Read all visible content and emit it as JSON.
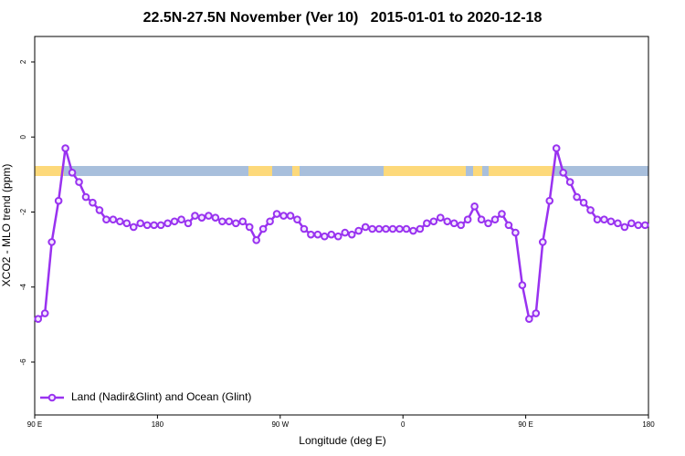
{
  "chart_data": {
    "type": "line",
    "title": "22.5N-27.5N November (Ver 10)   2015-01-01 to 2020-12-18",
    "xlabel": "Longitude (deg E)",
    "ylabel": "XCO2 - MLO trend (ppm)",
    "x": [
      92.5,
      97.5,
      102.5,
      107.5,
      112.5,
      117.5,
      122.5,
      127.5,
      132.5,
      137.5,
      142.5,
      147.5,
      152.5,
      157.5,
      162.5,
      167.5,
      172.5,
      177.5,
      182.5,
      187.5,
      192.5,
      197.5,
      202.5,
      207.5,
      212.5,
      217.5,
      222.5,
      227.5,
      232.5,
      237.5,
      242.5,
      247.5,
      252.5,
      257.5,
      262.5,
      267.5,
      272.5,
      277.5,
      282.5,
      287.5,
      292.5,
      297.5,
      302.5,
      307.5,
      312.5,
      317.5,
      322.5,
      327.5,
      332.5,
      337.5,
      342.5,
      347.5,
      352.5,
      357.5,
      362.5,
      367.5,
      372.5,
      377.5,
      382.5,
      387.5,
      392.5,
      397.5,
      402.5,
      407.5,
      412.5,
      417.5,
      422.5,
      427.5,
      432.5,
      437.5,
      442.5,
      447.5,
      452.5,
      457.5,
      462.5,
      467.5,
      472.5,
      477.5,
      482.5,
      487.5,
      492.5,
      497.5,
      502.5,
      507.5,
      512.5,
      517.5,
      522.5,
      527.5,
      532.5,
      537.5
    ],
    "series": [
      {
        "name": "Land (Nadir&Glint) and Ocean (Glint)",
        "color": "#9932f0",
        "values": [
          -4.85,
          -4.7,
          -2.8,
          -1.7,
          -0.3,
          -0.95,
          -1.2,
          -1.6,
          -1.75,
          -1.95,
          -2.2,
          -2.2,
          -2.25,
          -2.3,
          -2.4,
          -2.3,
          -2.35,
          -2.35,
          -2.35,
          -2.3,
          -2.25,
          -2.2,
          -2.3,
          -2.1,
          -2.15,
          -2.1,
          -2.15,
          -2.25,
          -2.25,
          -2.3,
          -2.25,
          -2.4,
          -2.75,
          -2.45,
          -2.25,
          -2.05,
          -2.1,
          -2.1,
          -2.2,
          -2.45,
          -2.6,
          -2.6,
          -2.65,
          -2.6,
          -2.65,
          -2.55,
          -2.6,
          -2.5,
          -2.4,
          -2.45,
          -2.45,
          -2.45,
          -2.45,
          -2.45,
          -2.45,
          -2.5,
          -2.45,
          -2.3,
          -2.25,
          -2.15,
          -2.25,
          -2.3,
          -2.35,
          -2.2,
          -1.85,
          -2.2,
          -2.3,
          -2.2,
          -2.05,
          -2.35,
          -2.55,
          -3.95,
          -4.85,
          -4.7,
          -2.8,
          -1.7,
          -0.3,
          -0.95,
          -1.2,
          -1.6,
          -1.75,
          -1.95,
          -2.2,
          -2.2,
          -2.25,
          -2.3,
          -2.4,
          -2.3,
          -2.35,
          -2.35
        ]
      }
    ],
    "xlim": [
      90,
      540
    ],
    "xticks": [
      {
        "value": 90,
        "label": "90 E"
      },
      180,
      {
        "value": 270,
        "label": "90 W"
      },
      {
        "value": 360,
        "label": "0"
      },
      {
        "value": 450,
        "label": "90 E"
      },
      {
        "value": 540,
        "label": "180"
      }
    ],
    "ylim": [
      -7.41,
      2.68
    ],
    "yticks": [
      -6,
      -4,
      -2,
      0,
      2
    ],
    "legend": "bottom-left"
  }
}
